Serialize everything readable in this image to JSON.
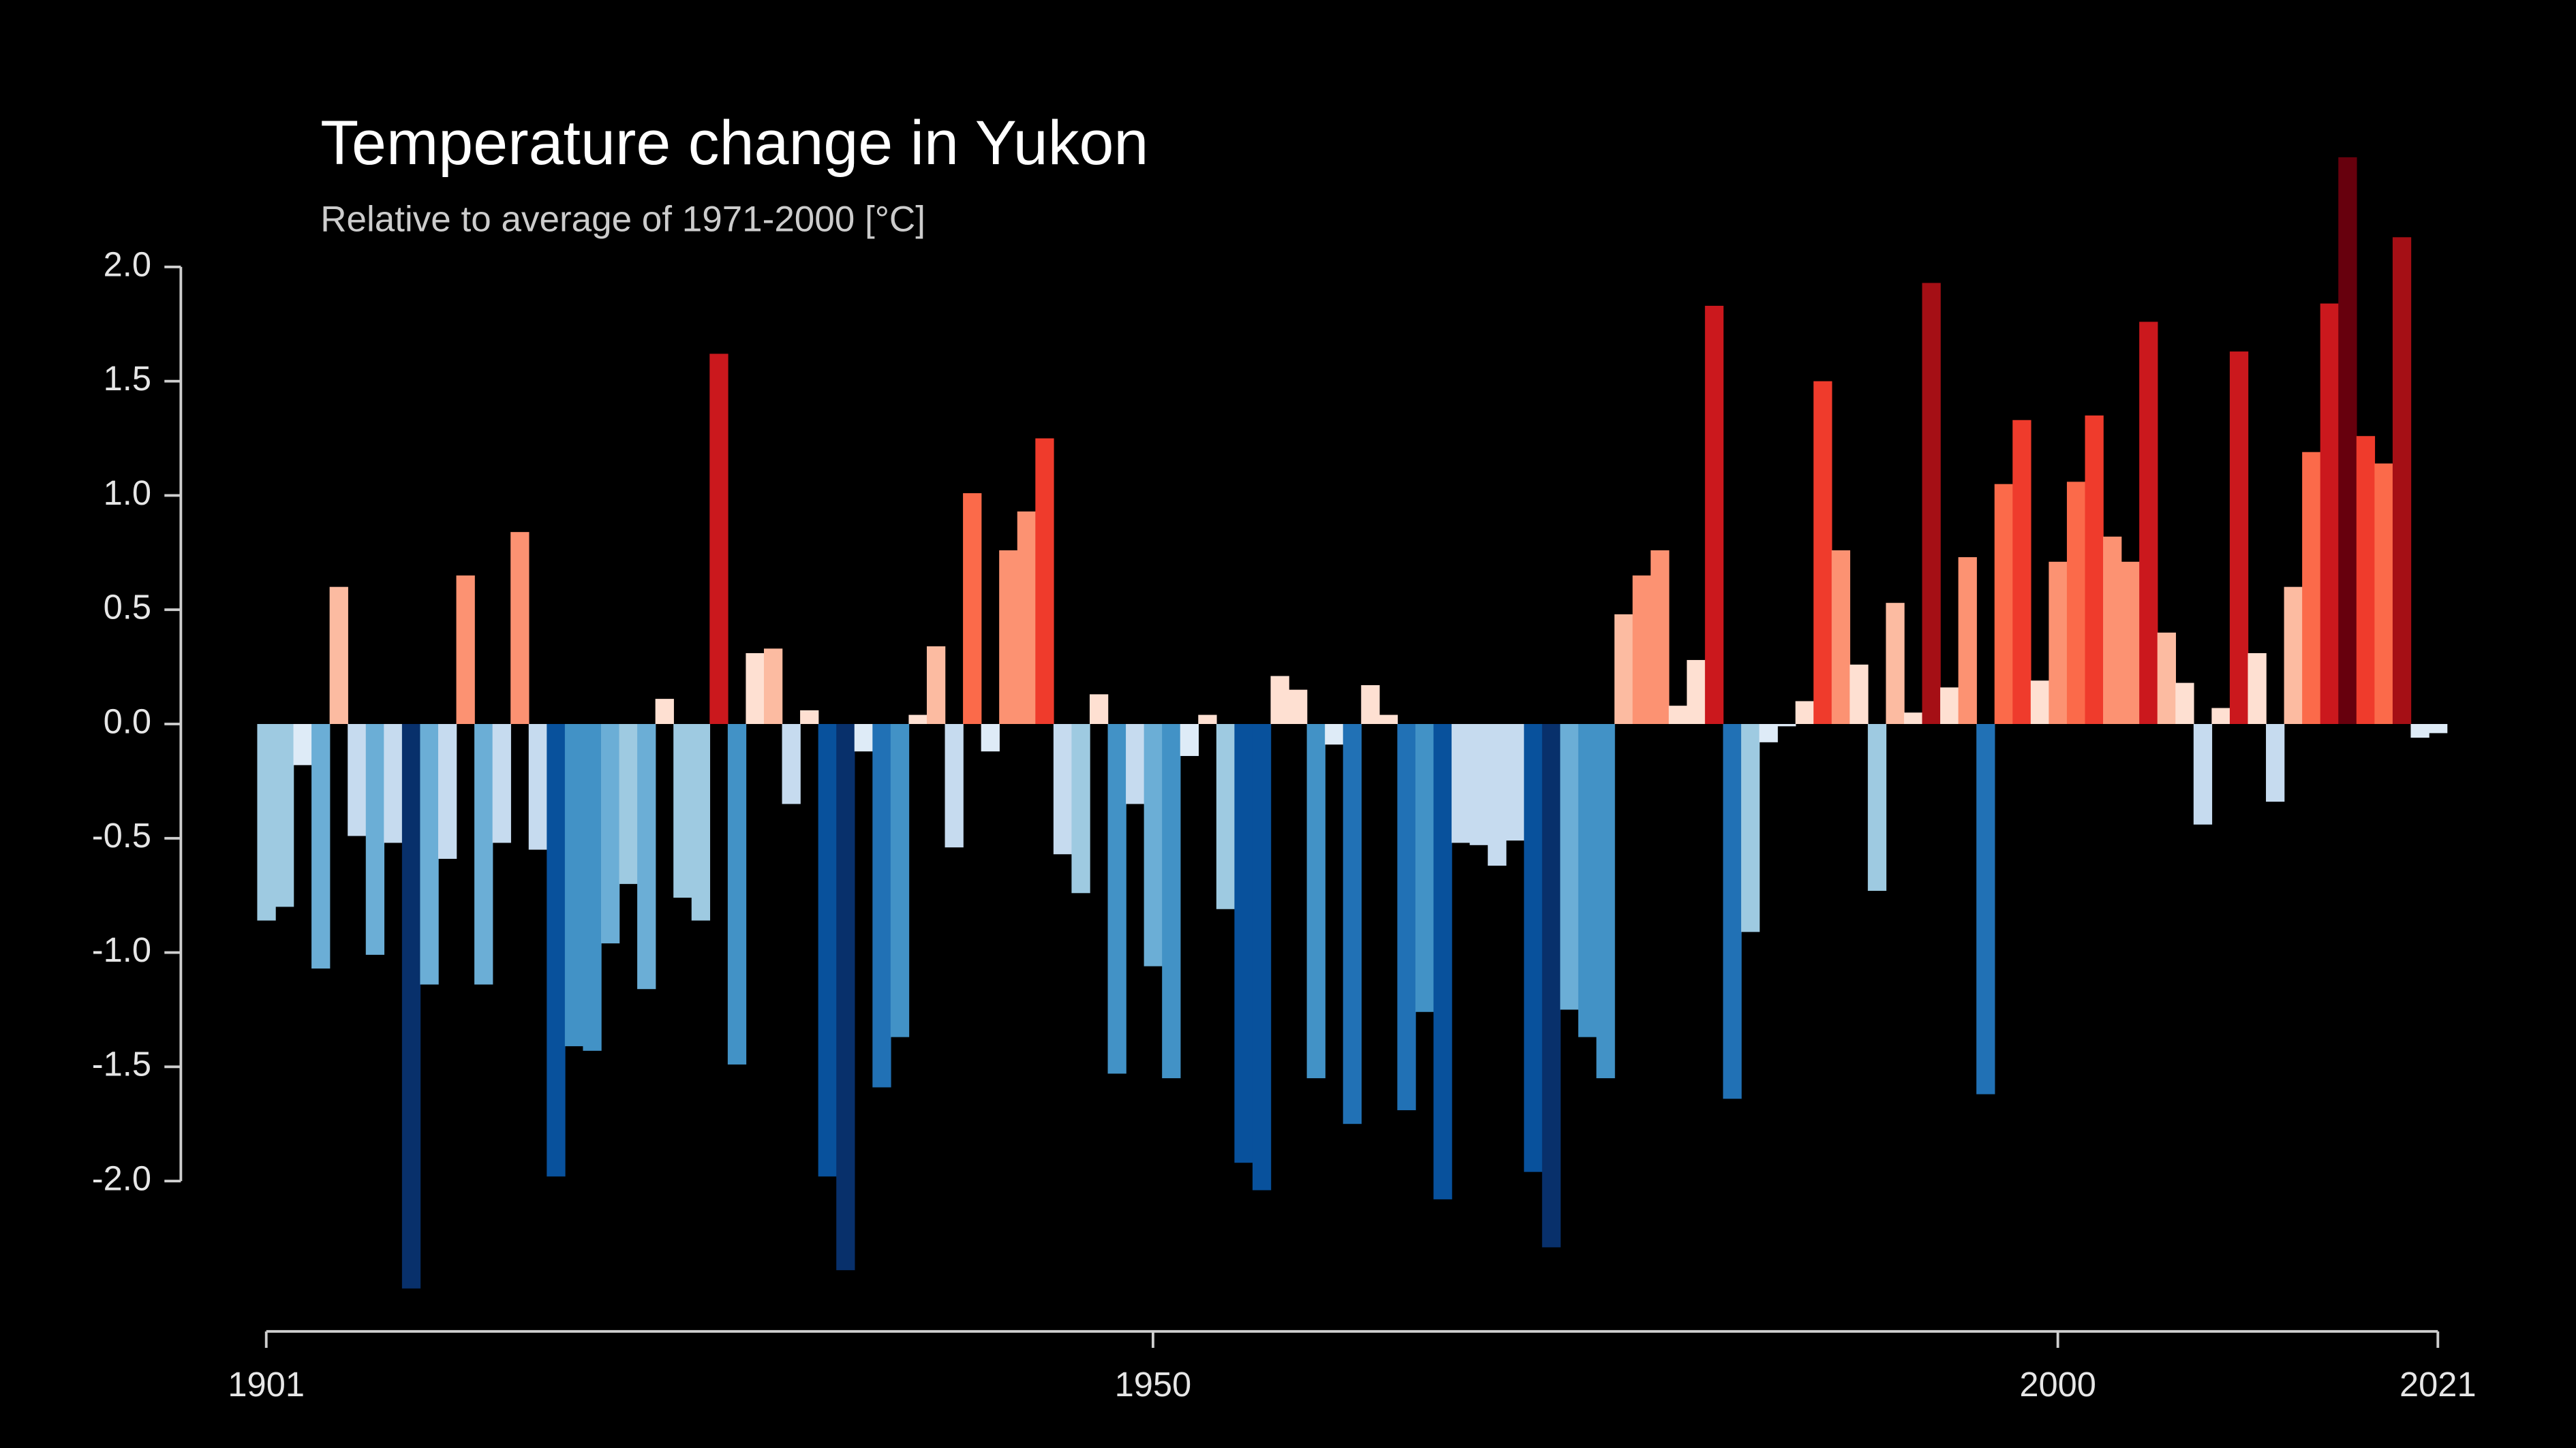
{
  "chart_data": {
    "type": "bar",
    "title": "Temperature change in Yukon",
    "subtitle": "Relative to average of 1971-2000  [°C]",
    "x": [
      1901,
      1902,
      1903,
      1904,
      1905,
      1906,
      1907,
      1908,
      1909,
      1910,
      1911,
      1912,
      1913,
      1914,
      1915,
      1916,
      1917,
      1918,
      1919,
      1920,
      1921,
      1922,
      1923,
      1924,
      1925,
      1926,
      1927,
      1928,
      1929,
      1930,
      1931,
      1932,
      1933,
      1934,
      1935,
      1936,
      1937,
      1938,
      1939,
      1940,
      1941,
      1942,
      1943,
      1944,
      1945,
      1946,
      1947,
      1948,
      1949,
      1950,
      1951,
      1952,
      1953,
      1954,
      1955,
      1956,
      1957,
      1958,
      1959,
      1960,
      1961,
      1962,
      1963,
      1964,
      1965,
      1966,
      1967,
      1968,
      1969,
      1970,
      1971,
      1972,
      1973,
      1974,
      1975,
      1976,
      1977,
      1978,
      1979,
      1980,
      1981,
      1982,
      1983,
      1984,
      1985,
      1986,
      1987,
      1988,
      1989,
      1990,
      1991,
      1992,
      1993,
      1994,
      1995,
      1996,
      1997,
      1998,
      1999,
      2000,
      2001,
      2002,
      2003,
      2004,
      2005,
      2006,
      2007,
      2008,
      2009,
      2010,
      2011,
      2012,
      2013,
      2014,
      2015,
      2016,
      2017,
      2018,
      2019,
      2020,
      2021
    ],
    "values": [
      -0.86,
      -0.8,
      -0.18,
      -1.07,
      0.6,
      -0.49,
      -1.01,
      -0.52,
      -2.47,
      -1.14,
      -0.59,
      0.65,
      -1.14,
      -0.52,
      0.84,
      -0.55,
      -1.98,
      -1.41,
      -1.43,
      -0.96,
      -0.7,
      -1.16,
      0.11,
      -0.76,
      -0.86,
      1.62,
      -1.49,
      0.31,
      0.33,
      -0.35,
      0.06,
      -1.98,
      -2.39,
      -0.12,
      -1.59,
      -1.37,
      0.04,
      0.34,
      -0.54,
      1.01,
      -0.12,
      0.76,
      0.93,
      1.25,
      -0.57,
      -0.74,
      0.13,
      -1.53,
      -0.35,
      -1.06,
      -1.55,
      -0.14,
      0.04,
      -0.81,
      -1.92,
      -2.04,
      0.21,
      0.15,
      -1.55,
      -0.09,
      -1.75,
      0.17,
      0.04,
      -1.69,
      -1.26,
      -2.08,
      -0.52,
      -0.53,
      -0.62,
      -0.51,
      -1.96,
      -2.29,
      -1.25,
      -1.37,
      -1.55,
      0.48,
      0.65,
      0.76,
      0.08,
      0.28,
      1.83,
      -1.64,
      -0.91,
      -0.08,
      -0.01,
      0.1,
      1.5,
      0.76,
      0.26,
      -0.73,
      0.53,
      0.05,
      1.93,
      0.16,
      0.73,
      -1.62,
      1.05,
      1.33,
      0.19,
      0.71,
      1.06,
      1.35,
      0.82,
      0.71,
      1.76,
      0.4,
      0.18,
      -0.44,
      0.07,
      1.63,
      0.31,
      -0.34,
      0.6,
      1.19,
      1.84,
      2.48,
      1.26,
      1.14,
      2.13,
      -0.06,
      -0.04
    ],
    "colormap": [
      "#08306b",
      "#08519c",
      "#2171b5",
      "#4292c6",
      "#6baed6",
      "#9ecae1",
      "#c6dbef",
      "#deebf7",
      "#fee0d2",
      "#fcbba1",
      "#fc9272",
      "#fb6a4a",
      "#ef3b2c",
      "#cb181d",
      "#a50f15",
      "#67000d"
    ],
    "xlim": [
      1901,
      2021
    ],
    "xticks": [
      1901,
      1950,
      2000,
      2021
    ],
    "ylim": [
      -2.5,
      2.5
    ],
    "yticks": [
      {
        "value": 2,
        "label": "2.0"
      },
      1.5,
      {
        "value": 1,
        "label": "1.0"
      },
      0.5,
      {
        "value": 0,
        "label": "0.0"
      },
      -0.5,
      {
        "value": -1,
        "label": "-1.0"
      },
      -1.5,
      {
        "value": -2,
        "label": "-2.0"
      }
    ]
  }
}
